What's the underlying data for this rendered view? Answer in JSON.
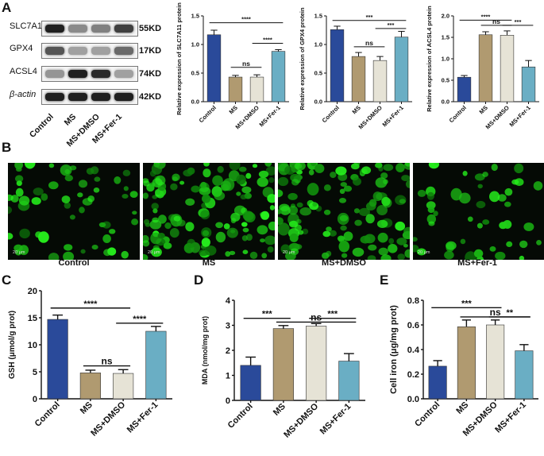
{
  "panels": {
    "A": "A",
    "B": "B",
    "C": "C",
    "D": "D",
    "E": "E"
  },
  "blot": {
    "rows": [
      {
        "label": "SLC7A11",
        "kd": "55KD",
        "intensity": [
          0.95,
          0.45,
          0.5,
          0.8
        ]
      },
      {
        "label": "GPX4",
        "kd": "17KD",
        "intensity": [
          0.7,
          0.35,
          0.35,
          0.6
        ]
      },
      {
        "label": "ACSL4",
        "kd": "74KD",
        "intensity": [
          0.4,
          0.95,
          0.9,
          0.35
        ]
      },
      {
        "label": "β-actin",
        "kd": "42KD",
        "intensity": [
          0.95,
          0.95,
          0.95,
          0.95
        ]
      }
    ],
    "lanes": [
      "Control",
      "MS",
      "MS+DMSO",
      "MS+Fer-1"
    ]
  },
  "micrographs": [
    {
      "label": "Control",
      "scale": "20 μm",
      "density": 0.35
    },
    {
      "label": "MS",
      "scale": "20 μm",
      "density": 0.95
    },
    {
      "label": "MS+DMSO",
      "scale": "20 μm",
      "density": 0.9
    },
    {
      "label": "MS+Fer-1",
      "scale": "20 μm",
      "density": 0.25
    }
  ],
  "colors": {
    "Control": "#2a4a9a",
    "MS": "#b09a70",
    "MS+DMSO": "#e6e3d6",
    "MS+Fer-1": "#6aaec4"
  },
  "chart_data": [
    {
      "id": "slc7a11",
      "type": "bar",
      "categories": [
        "Control",
        "MS",
        "MS+DMSO",
        "MS+Fer-1"
      ],
      "values": [
        1.17,
        0.43,
        0.43,
        0.88
      ],
      "errors": [
        0.08,
        0.03,
        0.04,
        0.03
      ],
      "ylabel": "Relative expression of SLC7A11 protein",
      "ylim": [
        0,
        1.5
      ],
      "yticks": [
        "0.0",
        "0.5",
        "1.0",
        "1.5"
      ],
      "sig": [
        {
          "from": 0,
          "to": 3,
          "label": "****",
          "level": 1.38
        },
        {
          "from": 1,
          "to": 2,
          "label": "ns",
          "level": 0.6
        },
        {
          "from": 2,
          "to": 3,
          "label": "****",
          "level": 1.02
        }
      ]
    },
    {
      "id": "gpx4",
      "type": "bar",
      "categories": [
        "Control",
        "MS",
        "MS+DMSO",
        "MS+Fer-1"
      ],
      "values": [
        1.26,
        0.79,
        0.72,
        1.13
      ],
      "errors": [
        0.06,
        0.07,
        0.07,
        0.1
      ],
      "ylabel": "Relative expression of GPX4 protein",
      "ylim": [
        0,
        1.5
      ],
      "yticks": [
        "0.0",
        "0.5",
        "1.0",
        "1.5"
      ],
      "sig": [
        {
          "from": 0,
          "to": 3,
          "label": "***",
          "level": 1.42
        },
        {
          "from": 1,
          "to": 2,
          "label": "ns",
          "level": 0.96
        },
        {
          "from": 2,
          "to": 3,
          "label": "***",
          "level": 1.28
        }
      ]
    },
    {
      "id": "acsl4",
      "type": "bar",
      "categories": [
        "Control",
        "MS",
        "MS+DMSO",
        "MS+Fer-1"
      ],
      "values": [
        0.57,
        1.56,
        1.55,
        0.81
      ],
      "errors": [
        0.04,
        0.07,
        0.1,
        0.15
      ],
      "ylabel": "Relative expression of ACSL4 protein",
      "ylim": [
        0,
        2.0
      ],
      "yticks": [
        "0.0",
        "0.5",
        "1.0",
        "1.5",
        "2.0"
      ],
      "sig": [
        {
          "from": 0,
          "to": 2,
          "label": "****",
          "level": 1.9
        },
        {
          "from": 1,
          "to": 2,
          "label": "ns",
          "level": 1.78
        },
        {
          "from": 2,
          "to": 3,
          "label": "***",
          "level": 1.78
        }
      ]
    },
    {
      "id": "gsh",
      "type": "bar",
      "categories": [
        "Control",
        "MS",
        "MS+DMSO",
        "MS+Fer-1"
      ],
      "values": [
        14.7,
        4.8,
        4.7,
        12.5
      ],
      "errors": [
        0.8,
        0.5,
        0.7,
        0.9
      ],
      "ylabel": "GSH (μmol/g prot)",
      "ylim": [
        0,
        20
      ],
      "yticks": [
        "0",
        "5",
        "10",
        "15",
        "20"
      ],
      "sig": [
        {
          "from": 0,
          "to": 2,
          "label": "****",
          "level": 16.8
        },
        {
          "from": 1,
          "to": 2,
          "label": "ns",
          "level": 6.1
        },
        {
          "from": 2,
          "to": 3,
          "label": "****",
          "level": 14.0
        }
      ]
    },
    {
      "id": "mda",
      "type": "bar",
      "categories": [
        "Control",
        "MS",
        "MS+DMSO",
        "MS+Fer-1"
      ],
      "values": [
        1.4,
        2.87,
        2.97,
        1.57
      ],
      "errors": [
        0.33,
        0.12,
        0.1,
        0.3
      ],
      "ylabel": "MDA (nmol/mg prot)",
      "ylim": [
        0,
        4
      ],
      "yticks": [
        "0",
        "1",
        "2",
        "3",
        "4"
      ],
      "sig": [
        {
          "from": 0,
          "to": 1,
          "label": "***",
          "level": 3.28
        },
        {
          "from": 1,
          "to": 3,
          "label": "ns",
          "level": 3.13
        },
        {
          "from": 2,
          "to": 3,
          "label": "***",
          "level": 3.28
        }
      ]
    },
    {
      "id": "iron",
      "type": "bar",
      "categories": [
        "Control",
        "MS",
        "MS+DMSO",
        "MS+Fer-1"
      ],
      "values": [
        0.265,
        0.585,
        0.6,
        0.39
      ],
      "errors": [
        0.045,
        0.055,
        0.04,
        0.05
      ],
      "ylabel": "Cell iron (μg/mg prot)",
      "ylim": [
        0,
        0.8
      ],
      "yticks": [
        "0.0",
        "0.2",
        "0.4",
        "0.6",
        "0.8"
      ],
      "sig": [
        {
          "from": 0,
          "to": 2,
          "label": "***",
          "level": 0.74
        },
        {
          "from": 1,
          "to": 3,
          "label": "ns",
          "level": 0.665
        },
        {
          "from": 2,
          "to": 3,
          "label": "**",
          "level": 0.665
        }
      ]
    }
  ]
}
